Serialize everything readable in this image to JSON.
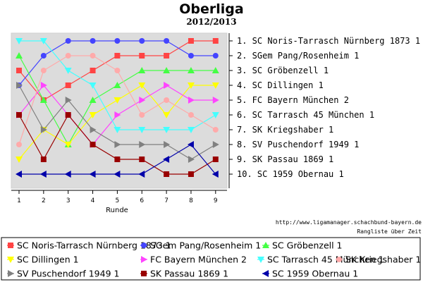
{
  "chart_data": {
    "type": "line",
    "title": "Oberliga",
    "subtitle": "2012/2013",
    "xlabel": "Runde",
    "x": [
      1,
      2,
      3,
      4,
      5,
      6,
      7,
      8,
      9
    ],
    "ylim": [
      1,
      10
    ],
    "y_inverted": true,
    "grid": false,
    "legend_position": "bottom",
    "rank_labels": [
      "1. SC Noris-Tarrasch Nürnberg 1873 1",
      "2. SGem Pang/Rosenheim 1",
      "3. SC Gröbenzell 1",
      "4. SC Dillingen 1",
      "5. FC Bayern München 2",
      "6. SC Tarrasch 45 München 1",
      "7. SK Kriegshaber 1",
      "8. SV Puschendorf 1949 1",
      "9. SK Passau 1869 1",
      "10. SC 1959 Obernau 1"
    ],
    "source_url": "http://www.ligamanager.schachbund-bayern.de",
    "caption": "Rangliste über Zeit",
    "series": [
      {
        "name": "SC Noris-Tarrasch Nürnberg 1873 1",
        "color": "#ff4444",
        "marker": "square",
        "values": [
          3,
          5,
          4,
          3,
          2,
          2,
          2,
          1,
          1
        ]
      },
      {
        "name": "SGem Pang/Rosenheim 1",
        "color": "#4444ff",
        "marker": "circle",
        "values": [
          4,
          2,
          1,
          1,
          1,
          1,
          1,
          2,
          2
        ]
      },
      {
        "name": "SC Gröbenzell 1",
        "color": "#44ff44",
        "marker": "triangle-up",
        "values": [
          2,
          5,
          8,
          5,
          4,
          3,
          3,
          3,
          3
        ]
      },
      {
        "name": "SC Dillingen 1",
        "color": "#ffff00",
        "marker": "triangle-down",
        "values": [
          9,
          7,
          8,
          6,
          5,
          4,
          6,
          4,
          4
        ]
      },
      {
        "name": "FC Bayern München 2",
        "color": "#ff44ff",
        "marker": "triangle-right",
        "values": [
          6,
          4,
          6,
          8,
          6,
          5,
          4,
          5,
          5
        ]
      },
      {
        "name": "SC Tarrasch 45 München 1",
        "color": "#44ffff",
        "marker": "triangle-down",
        "values": [
          1,
          1,
          3,
          4,
          7,
          7,
          7,
          7,
          6
        ]
      },
      {
        "name": "SK Kriegshaber 1",
        "color": "#ffaaaa",
        "marker": "circle",
        "values": [
          8,
          3,
          2,
          2,
          3,
          6,
          5,
          6,
          7
        ]
      },
      {
        "name": "SV Puschendorf 1949 1",
        "color": "#808080",
        "marker": "triangle-right",
        "values": [
          4,
          7,
          5,
          7,
          8,
          8,
          8,
          9,
          8
        ]
      },
      {
        "name": "SK Passau 1869 1",
        "color": "#990000",
        "marker": "square",
        "values": [
          6,
          9,
          6,
          8,
          9,
          9,
          10,
          10,
          9
        ]
      },
      {
        "name": "SC 1959 Obernau 1",
        "color": "#0000aa",
        "marker": "triangle-left",
        "values": [
          10,
          10,
          10,
          10,
          10,
          10,
          9,
          8,
          10
        ]
      }
    ]
  }
}
